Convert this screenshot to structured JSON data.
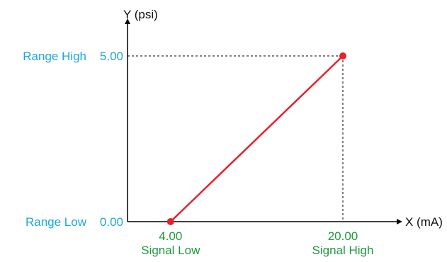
{
  "chart_data": {
    "type": "line",
    "x_axis_label": "X (mA)",
    "y_axis_label": "Y (psi)",
    "series": [
      {
        "points": [
          {
            "x": 4.0,
            "y": 0.0
          },
          {
            "x": 20.0,
            "y": 5.0
          }
        ],
        "color": "#e8202a",
        "marker_color": "#e8202a"
      }
    ],
    "x_markers": [
      {
        "value": 4.0,
        "value_label": "4.00",
        "name": "Signal Low"
      },
      {
        "value": 20.0,
        "value_label": "20.00",
        "name": "Signal High"
      }
    ],
    "y_markers": [
      {
        "value": 0.0,
        "value_label": "0.00",
        "name": "Range Low"
      },
      {
        "value": 5.0,
        "value_label": "5.00",
        "name": "Range High"
      }
    ],
    "grid": false,
    "guide_lines": "dashed lines from the Signal High / Range High point to both axes"
  },
  "colors": {
    "axis": "#000000",
    "line": "#e8202a",
    "x_marker_text": "#1d9a3c",
    "y_marker_name": "#1aa8e0",
    "y_marker_value": "#1aa8e0",
    "guide": "#000000"
  }
}
